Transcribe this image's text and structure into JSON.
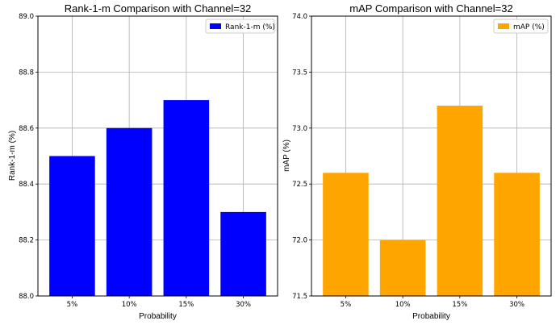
{
  "chart_data": [
    {
      "type": "bar",
      "title": "Rank-1-m Comparison with Channel=32",
      "xlabel": "Probability",
      "ylabel": "Rank-1-m (%)",
      "categories": [
        "5%",
        "10%",
        "15%",
        "30%"
      ],
      "series": [
        {
          "name": "Rank-1-m (%)",
          "values": [
            88.5,
            88.6,
            88.7,
            88.3
          ],
          "color": "#0000ff"
        }
      ],
      "ylim": [
        88.0,
        89.0
      ],
      "yticks": [
        "88.0",
        "88.2",
        "88.4",
        "88.6",
        "88.8",
        "89.0"
      ],
      "grid": true,
      "legend": "top-right"
    },
    {
      "type": "bar",
      "title": "mAP Comparison with Channel=32",
      "xlabel": "Probability",
      "ylabel": "mAP (%)",
      "categories": [
        "5%",
        "10%",
        "15%",
        "30%"
      ],
      "series": [
        {
          "name": "mAP (%)",
          "values": [
            72.6,
            72.0,
            73.2,
            72.6
          ],
          "color": "#ffa500"
        }
      ],
      "ylim": [
        71.5,
        74.0
      ],
      "yticks": [
        "71.5",
        "72.0",
        "72.5",
        "73.0",
        "73.5",
        "74.0"
      ],
      "grid": true,
      "legend": "top-right"
    }
  ]
}
